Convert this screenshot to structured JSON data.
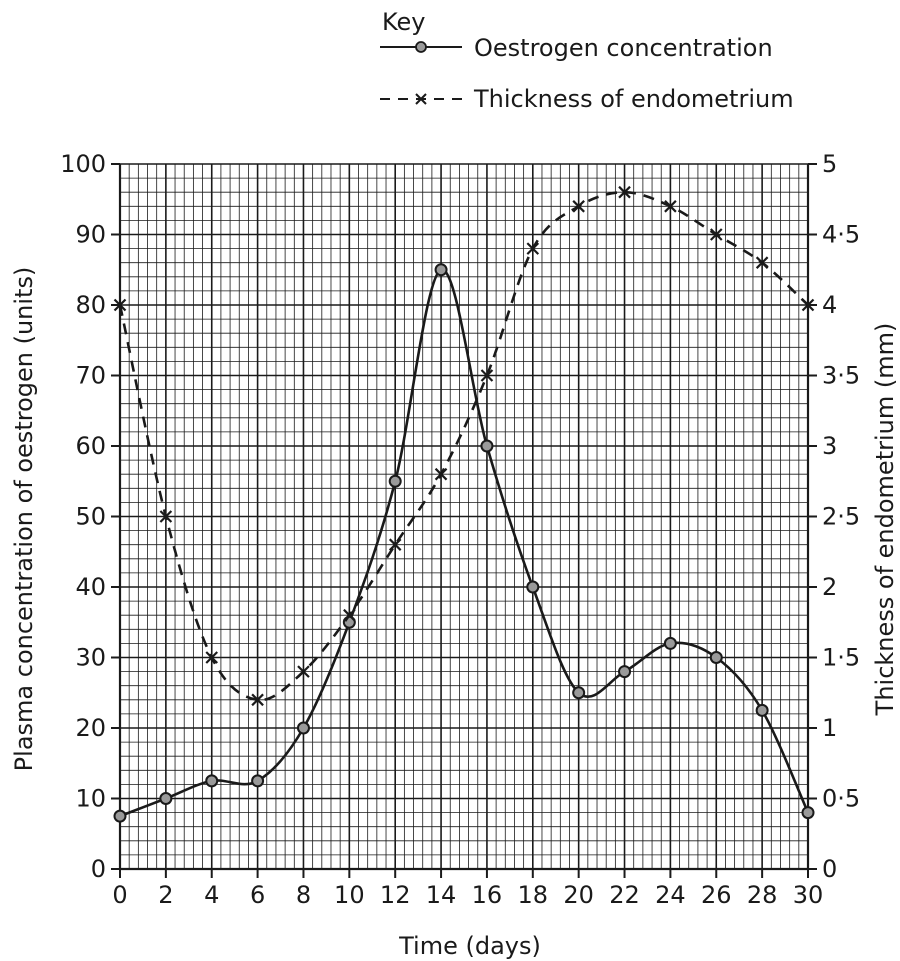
{
  "chart_data": {
    "type": "line",
    "key_title": "Key",
    "xlabel": "Time (days)",
    "ylabel_left": "Plasma concentration of oestrogen (units)",
    "ylabel_right": "Thickness of endometrium (mm)",
    "xlim": [
      0,
      30
    ],
    "ylim_left": [
      0,
      100
    ],
    "ylim_right": [
      0,
      5
    ],
    "x_ticks": [
      "0",
      "2",
      "4",
      "6",
      "8",
      "10",
      "12",
      "14",
      "16",
      "18",
      "20",
      "22",
      "24",
      "26",
      "28",
      "30"
    ],
    "y_left_ticks": [
      "0",
      "10",
      "20",
      "30",
      "40",
      "50",
      "60",
      "70",
      "80",
      "90",
      "100"
    ],
    "y_right_ticks": [
      "0",
      "0·5",
      "1",
      "1·5",
      "2",
      "2·5",
      "3",
      "3·5",
      "4",
      "4·5",
      "5"
    ],
    "grid": true,
    "legend_position": "top-right",
    "series": [
      {
        "name": "Oestrogen concentration",
        "axis": "left",
        "line_style": "solid",
        "marker": "circle",
        "x": [
          0,
          2,
          4,
          6,
          8,
          10,
          12,
          14,
          16,
          18,
          20,
          22,
          24,
          26,
          28,
          30
        ],
        "y": [
          7.5,
          10,
          12.5,
          12.5,
          20,
          35,
          55,
          85,
          60,
          40,
          25,
          28,
          32,
          30,
          22.5,
          8
        ]
      },
      {
        "name": "Thickness of endometrium",
        "axis": "right",
        "line_style": "dashed",
        "marker": "cross",
        "x": [
          0,
          2,
          4,
          6,
          8,
          10,
          12,
          14,
          16,
          18,
          20,
          22,
          24,
          26,
          28,
          30
        ],
        "y": [
          4.0,
          2.5,
          1.5,
          1.2,
          1.4,
          1.8,
          2.3,
          2.8,
          3.5,
          4.4,
          4.7,
          4.8,
          4.7,
          4.5,
          4.3,
          4.0
        ]
      }
    ],
    "colors": {
      "line": "#1a1a1a",
      "marker_fill": "#9a9a9a",
      "grid": "#1a1a1a"
    }
  }
}
